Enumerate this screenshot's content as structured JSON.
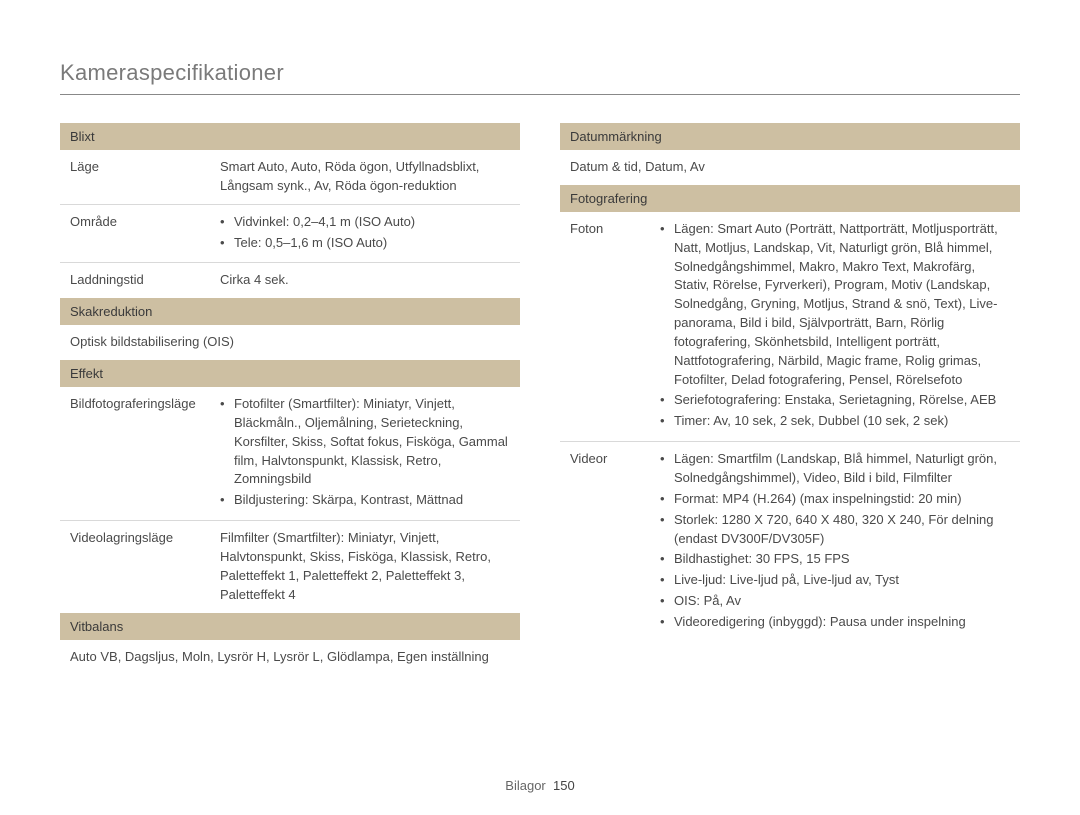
{
  "page_title": "Kameraspecifikationer",
  "colors": {
    "header_bg": "#cdbfa2",
    "header_text": "#3a3a3a",
    "body_text": "#4a4a4a",
    "rule": "#d9d9d9",
    "title_rule": "#888888",
    "background": "#ffffff"
  },
  "typography": {
    "title_fontsize_pt": 17,
    "title_weight": 300,
    "body_fontsize_pt": 10,
    "header_fontsize_pt": 10,
    "line_height": 1.45
  },
  "left": {
    "blixt": {
      "header": "Blixt",
      "lage_label": "Läge",
      "lage_value": "Smart Auto, Auto, Röda ögon, Utfyllnadsblixt, Långsam synk., Av, Röda ögon-reduktion",
      "omrade_label": "Område",
      "omrade_items": [
        "Vidvinkel: 0,2–4,1 m (ISO Auto)",
        "Tele: 0,5–1,6 m (ISO Auto)"
      ],
      "laddning_label": "Laddningstid",
      "laddning_value": "Cirka 4 sek."
    },
    "skakreduktion": {
      "header": "Skakreduktion",
      "value": "Optisk bildstabilisering (OIS)"
    },
    "effekt": {
      "header": "Effekt",
      "bild_label": "Bildfotograferingsläge",
      "bild_items": [
        "Fotofilter (Smartfilter): Miniatyr, Vinjett, Bläckmåln., Oljemålning, Serieteckning, Korsfilter, Skiss, Softat fokus, Fisköga, Gammal film, Halvtonspunkt, Klassisk, Retro, Zomningsbild",
        "Bildjustering: Skärpa, Kontrast, Mättnad"
      ],
      "video_label": "Videolagringsläge",
      "video_value": "Filmfilter (Smartfilter): Miniatyr, Vinjett, Halvtonspunkt, Skiss, Fisköga, Klassisk, Retro, Paletteffekt 1, Paletteffekt 2, Paletteffekt 3, Paletteffekt 4"
    },
    "vitbalans": {
      "header": "Vitbalans",
      "value": "Auto VB, Dagsljus, Moln, Lysrör H, Lysrör L, Glödlampa, Egen inställning"
    }
  },
  "right": {
    "datum": {
      "header": "Datummärkning",
      "value": "Datum & tid, Datum, Av"
    },
    "foto_section": {
      "header": "Fotografering",
      "foton_label": "Foton",
      "foton_items": [
        "Lägen: Smart Auto (Porträtt, Nattporträtt, Motljusporträtt, Natt, Motljus, Landskap, Vit, Naturligt grön, Blå himmel, Solnedgångshimmel, Makro, Makro Text, Makrofärg, Stativ, Rörelse, Fyrverkeri), Program, Motiv (Landskap, Solnedgång, Gryning, Motljus, Strand & snö, Text), Live-panorama, Bild i bild, Självporträtt, Barn, Rörlig fotografering, Skönhetsbild, Intelligent porträtt, Nattfotografering, Närbild, Magic frame, Rolig grimas, Fotofilter, Delad fotografering, Pensel, Rörelsefoto",
        "Seriefotografering: Enstaka, Serietagning, Rörelse, AEB",
        "Timer: Av, 10 sek, 2 sek, Dubbel (10 sek, 2 sek)"
      ],
      "videor_label": "Videor",
      "videor_items": [
        "Lägen: Smartfilm (Landskap, Blå himmel, Naturligt grön, Solnedgångshimmel), Video, Bild i bild, Filmfilter",
        "Format: MP4 (H.264) (max inspelningstid: 20 min)",
        "Storlek: 1280 X 720, 640 X 480, 320 X 240, För delning (endast DV300F/DV305F)",
        "Bildhastighet: 30 FPS, 15 FPS",
        "Live-ljud: Live-ljud på, Live-ljud av, Tyst",
        "OIS: På, Av",
        "Videoredigering (inbyggd): Pausa under inspelning"
      ]
    }
  },
  "footer": {
    "label": "Bilagor",
    "page_number": "150"
  }
}
